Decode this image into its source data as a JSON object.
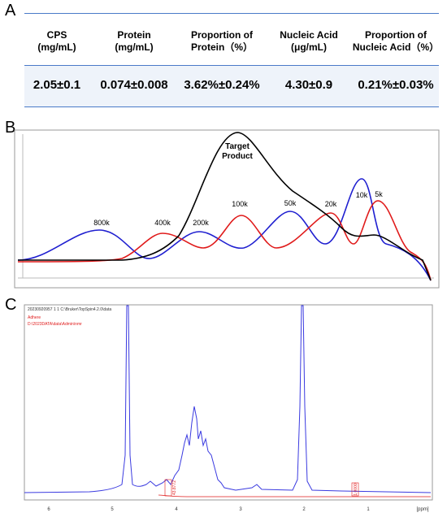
{
  "panels": {
    "a": "A",
    "b": "B",
    "c": "C"
  },
  "table": {
    "header": [
      "CPS\n(mg/mL)",
      "Protein\n(mg/mL)",
      "Proportion of\nProtein（%）",
      "Nucleic Acid\n(μg/mL)",
      "Proportion of\nNucleic Acid（%）"
    ],
    "row": [
      "2.05±0.1",
      "0.074±0.008",
      "3.62%±0.24%",
      "4.30±0.9",
      "0.21%±0.03%"
    ]
  },
  "gpc": {
    "annotation": "Target\nProduct",
    "labels": [
      "800k",
      "400k",
      "200k",
      "100k",
      "50k",
      "20k",
      "10k",
      "5k"
    ]
  },
  "nmr": {
    "header": "20230920957 1 1 C:\\Bruker\\TopSpin4.2.0\\data",
    "notes": [
      "Adhere",
      "D:\\2023DATA\\data\\Admin\\nmr"
    ],
    "xticks": [
      "6",
      "5",
      "4",
      "3",
      "2",
      "1"
    ],
    "xunit": "[ppm]",
    "integrals": [
      "43.8772",
      "1.0000"
    ]
  }
}
